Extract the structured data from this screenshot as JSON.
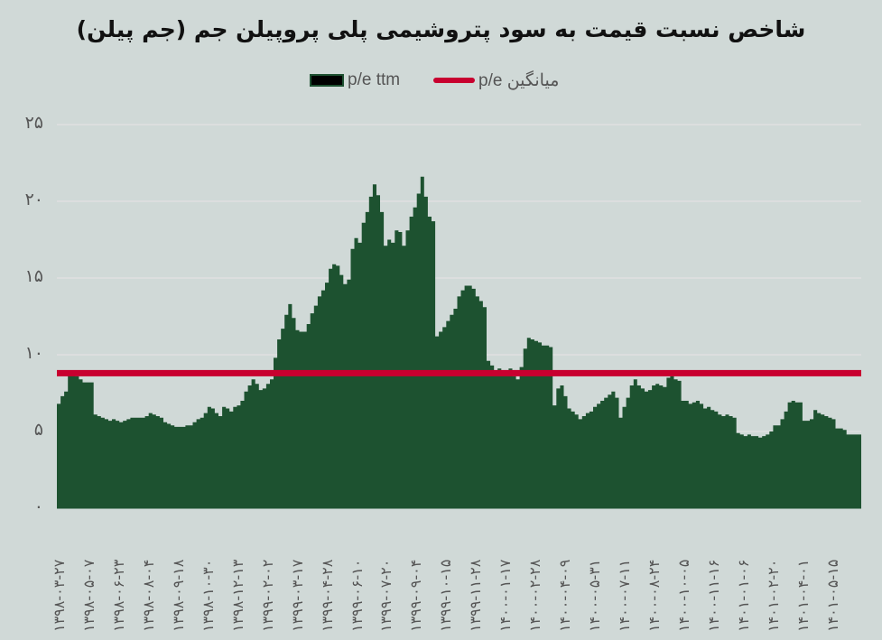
{
  "title": "شاخص نسبت قیمت به سود پتروشیمی پلی پروپیلن جم (جم پیلن)",
  "legend": [
    {
      "label": "p/e ttm",
      "type": "area",
      "color": "#1d5230"
    },
    {
      "label": "میانگین  p/e",
      "type": "line",
      "color": "#c8002f"
    }
  ],
  "colors": {
    "background": "#d0d9d7",
    "area": "#1d5230",
    "average": "#c8002f",
    "grid": "#dfdfe1"
  },
  "y_ticks": [
    "۰",
    "۵",
    "۱۰",
    "۱۵",
    "۲۰",
    "۲۵"
  ],
  "x_ticks": [
    "۱۳۹۸-۰۳-۲۷",
    "۱۳۹۸-۰۵-۰۷",
    "۱۳۹۸-۰۶-۲۳",
    "۱۳۹۸-۰۸-۰۴",
    "۱۳۹۸-۰۹-۱۸",
    "۱۳۹۸-۱۰-۳۰",
    "۱۳۹۸-۱۲-۱۳",
    "۱۳۹۹-۰۲-۰۲",
    "۱۳۹۹-۰۳-۱۷",
    "۱۳۹۹-۰۴-۲۸",
    "۱۳۹۹-۰۶-۱۰",
    "۱۳۹۹-۰۷-۲۰",
    "۱۳۹۹-۰۹-۰۴",
    "۱۳۹۹-۱۰-۱۵",
    "۱۳۹۹-۱۱-۲۸",
    "۱۴۰۰-۰۱-۱۷",
    "۱۴۰۰-۰۲-۲۸",
    "۱۴۰۰-۰۴-۰۹",
    "۱۴۰۰-۰۵-۳۱",
    "۱۴۰۰-۰۷-۱۱",
    "۱۴۰۰-۰۸-۲۴",
    "۱۴۰۰-۱۰-۰۵",
    "۱۴۰۰-۱۱-۱۶",
    "۱۴۰۱-۰۱-۰۶",
    "۱۴۰۱-۰۲-۲۰",
    "۱۴۰۱-۰۴-۰۱",
    "۱۴۰۱-۰۵-۱۵"
  ],
  "chart_data": {
    "type": "area",
    "title": "شاخص نسبت قیمت به سود پتروشیمی پلی پروپیلن جم (جم پیلن)",
    "xlabel": "",
    "ylabel": "",
    "ylim": [
      0,
      25
    ],
    "grid": true,
    "legend_position": "top",
    "categories": [
      "1398-03-27",
      "1398-05-07",
      "1398-06-23",
      "1398-08-04",
      "1398-09-18",
      "1398-10-30",
      "1398-12-13",
      "1399-02-02",
      "1399-03-17",
      "1399-04-28",
      "1399-06-10",
      "1399-07-20",
      "1399-09-04",
      "1399-10-15",
      "1399-11-28",
      "1400-01-17",
      "1400-02-28",
      "1400-04-09",
      "1400-05-31",
      "1400-07-11",
      "1400-08-24",
      "1400-10-05",
      "1400-11-16",
      "1401-01-06",
      "1401-02-20",
      "1401-04-01",
      "1401-05-15"
    ],
    "series": [
      {
        "name": "p/e ttm",
        "type": "area",
        "values": [
          6.8,
          7.3,
          7.6,
          9.0,
          8.8,
          8.6,
          8.4,
          8.2,
          8.2,
          8.2,
          6.1,
          6.0,
          5.9,
          5.8,
          5.7,
          5.8,
          5.7,
          5.6,
          5.7,
          5.8,
          5.9,
          5.9,
          5.9,
          5.9,
          6.0,
          6.2,
          6.1,
          6.0,
          5.9,
          5.6,
          5.5,
          5.4,
          5.3,
          5.3,
          5.3,
          5.4,
          5.4,
          5.6,
          5.8,
          5.9,
          6.2,
          6.6,
          6.5,
          6.2,
          6.0,
          6.6,
          6.5,
          6.3,
          6.6,
          6.7,
          7.0,
          7.6,
          8.0,
          8.4,
          8.1,
          7.7,
          7.8,
          8.1,
          8.4,
          9.8,
          11.0,
          11.7,
          12.6,
          13.3,
          12.4,
          11.6,
          11.5,
          11.5,
          12.0,
          12.7,
          13.2,
          13.8,
          14.2,
          14.7,
          15.6,
          15.9,
          15.8,
          15.2,
          14.6,
          14.9,
          16.9,
          17.6,
          17.3,
          18.6,
          19.3,
          20.3,
          21.1,
          20.4,
          19.3,
          17.1,
          17.5,
          17.3,
          18.1,
          18.0,
          17.1,
          18.1,
          19.0,
          19.6,
          20.5,
          21.6,
          20.3,
          19.0,
          18.7,
          11.2,
          11.5,
          11.8,
          12.2,
          12.6,
          13.0,
          13.8,
          14.2,
          14.5,
          14.5,
          14.3,
          13.8,
          13.5,
          13.1,
          9.6,
          9.3,
          9.0,
          9.1,
          9.0,
          8.9,
          9.1,
          8.6,
          8.4,
          9.2,
          10.4,
          11.1,
          11.0,
          10.9,
          10.8,
          10.6,
          10.6,
          10.5,
          6.7,
          7.8,
          8.0,
          7.3,
          6.5,
          6.3,
          6.1,
          5.8,
          6.0,
          6.2,
          6.3,
          6.6,
          6.8,
          7.0,
          7.2,
          7.4,
          7.6,
          7.2,
          5.9,
          6.6,
          7.2,
          8.0,
          8.4,
          8.0,
          7.8,
          7.6,
          7.7,
          8.0,
          8.1,
          8.0,
          7.9,
          8.5,
          8.6,
          8.4,
          8.3,
          7.0,
          7.0,
          6.8,
          6.9,
          7.0,
          6.8,
          6.5,
          6.6,
          6.4,
          6.3,
          6.1,
          6.0,
          6.1,
          6.0,
          5.9,
          4.9,
          4.8,
          4.7,
          4.8,
          4.7,
          4.7,
          4.6,
          4.7,
          4.8,
          5.0,
          5.4,
          5.4,
          5.8,
          6.3,
          6.9,
          7.0,
          6.9,
          6.9,
          5.7,
          5.7,
          5.8,
          6.4,
          6.2,
          6.1,
          6.0,
          5.9,
          5.8,
          5.2,
          5.2,
          5.1,
          4.8,
          4.8,
          4.8,
          4.8
        ]
      },
      {
        "name": "میانگین p/e",
        "type": "line",
        "values": [
          8.8
        ]
      }
    ],
    "average_value": 8.8
  }
}
